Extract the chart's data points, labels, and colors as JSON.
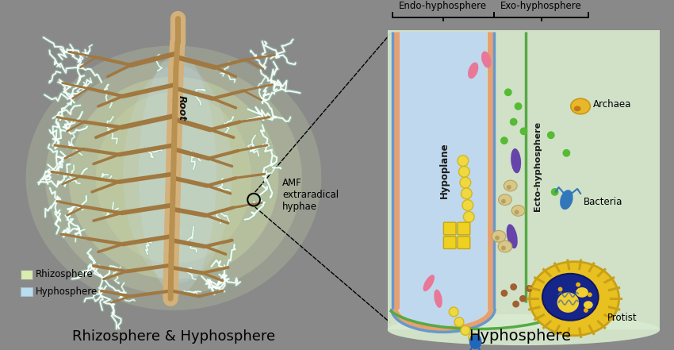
{
  "bg_color": "#898989",
  "title_left": "Rhizosphere & Hyphosphere",
  "title_right": "Hyphosphere",
  "title_fontsize": 13,
  "legend_rhizo_color": "#d8edae",
  "legend_hyph_color": "#b8dff0",
  "endo_label": "Endo-hyphosphere",
  "exo_label": "Exo-hyphosphere",
  "hypoplane_label": "Hypoplane",
  "ecto_label": "Ecto-hyphosphere",
  "amf_label": "AMF\nextraradical\nhyphae",
  "root_label": "Root",
  "archaea_label": "Archaea",
  "bacteria_label": "Bacteria",
  "protist_label": "Protist",
  "hyphosphere_bg": "#d8ecd0",
  "inner_lumen_color": "#c0d8ee",
  "cell_wall_color": "#e8a070",
  "blue_membrane_color": "#6699cc",
  "green_line_color": "#55aa44",
  "root_trunk_color": "#d4b07a",
  "root_trunk_dark": "#b89050",
  "root_branch_color": "#a07840",
  "rhizo_glow": "#dcedb0",
  "hyph_glow_color": "#c8e0f0"
}
